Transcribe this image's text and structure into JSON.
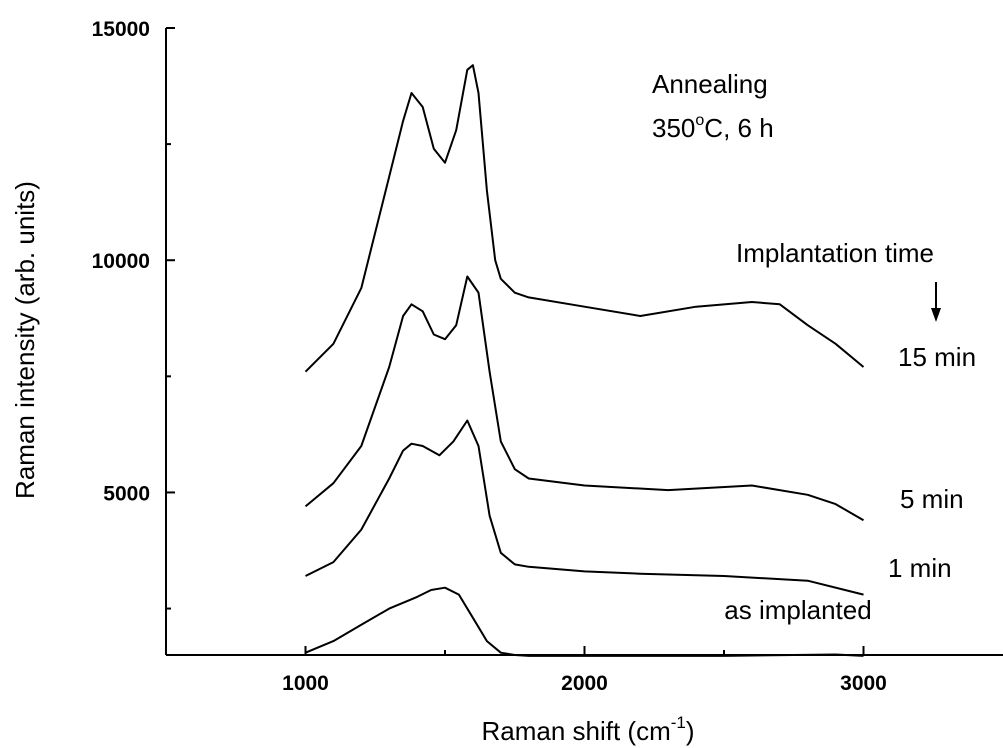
{
  "chart_data": {
    "type": "line",
    "title": "",
    "xlabel": "Raman shift (cm",
    "xlabel_superscript": "-1",
    "xlabel_suffix": ")",
    "ylabel": "Raman intensity (arb. units)",
    "xlim": [
      500,
      3500
    ],
    "ylim": [
      1500,
      15000
    ],
    "xticks": [
      1000,
      2000,
      3000
    ],
    "xtick_labels": [
      "1000",
      "2000",
      "3000"
    ],
    "yticks": [
      5000,
      10000,
      15000
    ],
    "ytick_labels": [
      "5000",
      "10000",
      "15000"
    ],
    "grid": false,
    "annotations": {
      "annealing_line1": "Annealing",
      "annealing_line2_prefix": "350",
      "annealing_line2_sup": "o",
      "annealing_line2_suffix": "C, 6 h",
      "implantation_time": "Implantation time",
      "arrow": "down-arrow"
    },
    "series": [
      {
        "name": "as implanted",
        "x": [
          1000,
          1100,
          1200,
          1300,
          1400,
          1450,
          1500,
          1550,
          1600,
          1650,
          1700,
          1750,
          1800,
          2000,
          2500,
          2900,
          3000
        ],
        "y": [
          1550,
          1800,
          2150,
          2500,
          2750,
          2900,
          2950,
          2800,
          2300,
          1800,
          1550,
          1500,
          1480,
          1480,
          1480,
          1510,
          1480
        ]
      },
      {
        "name": "1 min",
        "x": [
          1000,
          1100,
          1200,
          1300,
          1350,
          1380,
          1420,
          1480,
          1530,
          1580,
          1620,
          1660,
          1700,
          1750,
          1800,
          2000,
          2200,
          2500,
          2800,
          3000
        ],
        "y": [
          3200,
          3500,
          4200,
          5300,
          5900,
          6050,
          6000,
          5800,
          6100,
          6550,
          6000,
          4500,
          3700,
          3450,
          3400,
          3300,
          3250,
          3200,
          3100,
          2800
        ]
      },
      {
        "name": "5 min",
        "x": [
          1000,
          1100,
          1200,
          1300,
          1350,
          1380,
          1420,
          1460,
          1500,
          1540,
          1580,
          1620,
          1660,
          1700,
          1750,
          1800,
          2000,
          2300,
          2600,
          2800,
          2900,
          3000
        ],
        "y": [
          4700,
          5200,
          6000,
          7700,
          8800,
          9050,
          8900,
          8400,
          8300,
          8600,
          9650,
          9300,
          7600,
          6100,
          5500,
          5300,
          5150,
          5050,
          5150,
          4950,
          4750,
          4400
        ]
      },
      {
        "name": "15 min",
        "x": [
          1000,
          1100,
          1200,
          1300,
          1350,
          1380,
          1420,
          1460,
          1500,
          1540,
          1580,
          1600,
          1620,
          1650,
          1680,
          1700,
          1750,
          1800,
          2000,
          2200,
          2400,
          2600,
          2700,
          2800,
          2900,
          3000
        ],
        "y": [
          7600,
          8200,
          9400,
          11800,
          13000,
          13600,
          13300,
          12400,
          12100,
          12800,
          14100,
          14200,
          13600,
          11500,
          10000,
          9600,
          9300,
          9200,
          9000,
          8800,
          9000,
          9100,
          9050,
          8600,
          8200,
          7700
        ]
      }
    ]
  }
}
